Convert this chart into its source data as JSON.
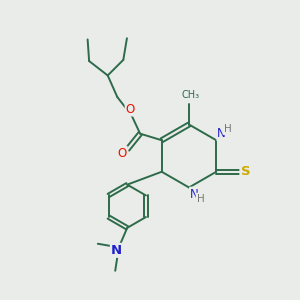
{
  "background_color": "#eaece9",
  "bond_color": "#2d6b4a",
  "atom_colors": {
    "O": "#ee1100",
    "N": "#2222cc",
    "S": "#ccaa00",
    "H": "#777777",
    "C": "#2d6b4a"
  },
  "figsize": [
    3.0,
    3.0
  ],
  "dpi": 100,
  "lw": 1.4,
  "fs": 8.5,
  "fs_small": 7.5
}
